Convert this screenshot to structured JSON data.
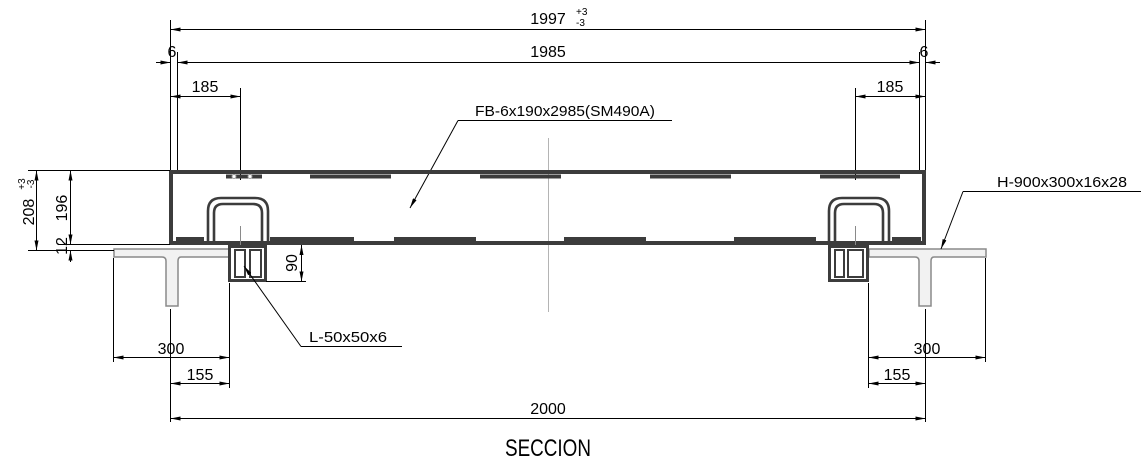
{
  "drawing": {
    "title": "SECCION",
    "colors": {
      "background": "#ffffff",
      "dimension_line": "#000000",
      "section_outline": "#3c3c3c",
      "beam_outline": "#8a8a8a",
      "centerline": "#b4b4b4"
    },
    "dimensions": {
      "overall": {
        "value": "1997",
        "tol_plus": "+3",
        "tol_minus": "-3"
      },
      "inner": "1985",
      "end_gap_left": "6",
      "end_gap_right": "6",
      "handle_left": "185",
      "handle_right": "185",
      "height": {
        "value": "208",
        "tol_plus": "+3",
        "tol_minus": "-3"
      },
      "plate_height": "196",
      "base_thickness": "12",
      "angle_drop": "90",
      "flange_left": "300",
      "flange_offset_left": "155",
      "flange_right": "300",
      "flange_offset_right": "155",
      "span": "2000"
    },
    "callouts": {
      "flat_bar": "FB-6x190x2985(SM490A)",
      "h_beam": "H-900x300x16x28",
      "angle": "L-50x50x6"
    }
  }
}
